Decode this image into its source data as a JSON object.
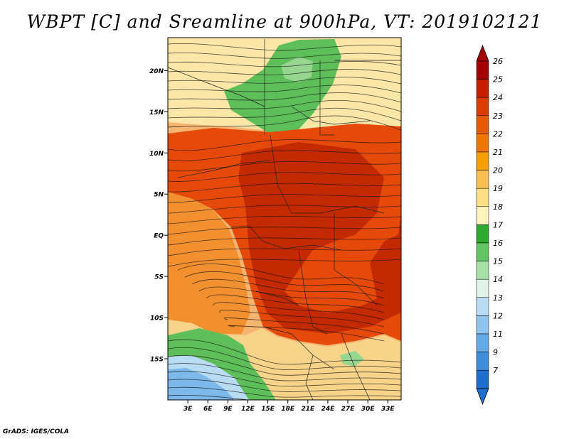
{
  "title": "WBPT [C] and Sreamline at 900hPa, VT: 2019102121",
  "credit": "GrADS: IGES/COLA",
  "map": {
    "lat_range": [
      -20,
      24
    ],
    "lon_range": [
      0,
      35
    ],
    "lat_ticks": [
      "20N",
      "15N",
      "10N",
      "5N",
      "EQ",
      "5S",
      "10S",
      "15S"
    ],
    "lon_ticks": [
      "3E",
      "6E",
      "9E",
      "12E",
      "15E",
      "18E",
      "21E",
      "24E",
      "27E",
      "30E",
      "33E"
    ]
  },
  "colorbar": {
    "labels": [
      "26",
      "25",
      "24",
      "23",
      "22",
      "21",
      "20",
      "19",
      "18",
      "17",
      "16",
      "15",
      "14",
      "13",
      "12",
      "11",
      "9",
      "7"
    ],
    "colors": [
      "#a50000",
      "#c81e00",
      "#dc3c00",
      "#e65a00",
      "#f07800",
      "#f5a000",
      "#f8c050",
      "#fce088",
      "#fef2bd",
      "#2ea82e",
      "#62c462",
      "#a8e0a8",
      "#e2f4ea",
      "#bcdcf4",
      "#8ec4ee",
      "#64aae6",
      "#3e8edc",
      "#1e6ed0"
    ]
  },
  "field": {
    "colors": {
      "sea": "#f5b470",
      "land": "#e64a0a",
      "core": "#c42a00",
      "warm": "#f29030",
      "pale": "#f7d48a",
      "cream": "#fce6a8",
      "green": "#5ebe5a",
      "lightgreen": "#96d690",
      "lightblue": "#b8dcf2",
      "blue": "#7cb8ea"
    }
  }
}
